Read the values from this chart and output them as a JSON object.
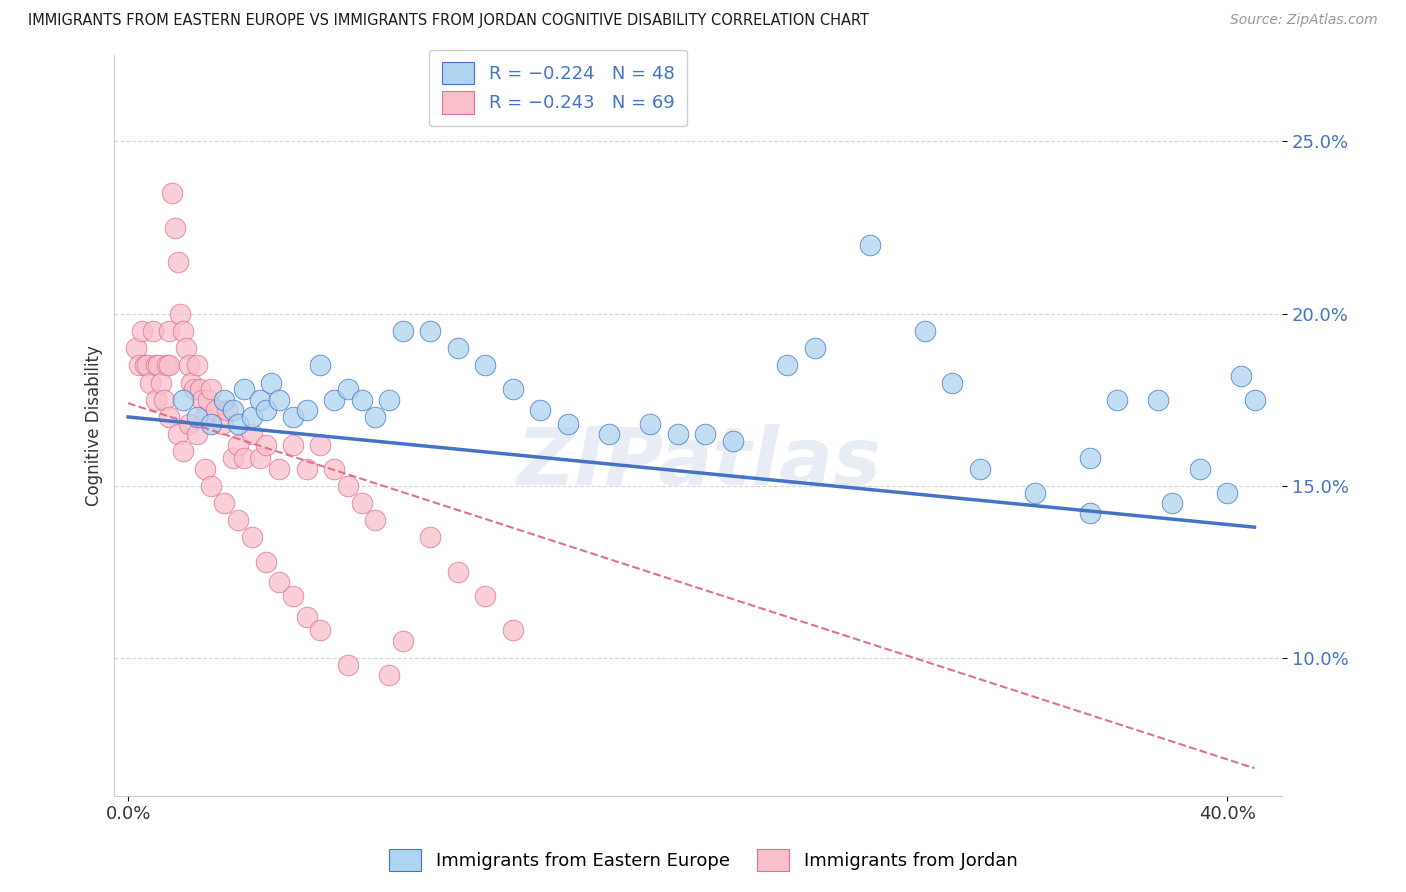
{
  "title": "IMMIGRANTS FROM EASTERN EUROPE VS IMMIGRANTS FROM JORDAN COGNITIVE DISABILITY CORRELATION CHART",
  "source": "Source: ZipAtlas.com",
  "ylabel": "Cognitive Disability",
  "y_ticks": [
    0.1,
    0.15,
    0.2,
    0.25
  ],
  "y_tick_labels": [
    "10.0%",
    "15.0%",
    "20.0%",
    "25.0%"
  ],
  "xlim": [
    -0.005,
    0.42
  ],
  "ylim": [
    0.06,
    0.275
  ],
  "watermark": "ZIPatlas",
  "legend_label1": "Immigrants from Eastern Europe",
  "legend_label2": "Immigrants from Jordan",
  "color_blue": "#aed4f0",
  "color_pink": "#f9c0cb",
  "edge_blue": "#4472c4",
  "edge_pink": "#e07090",
  "line_blue": "#4472c4",
  "line_pink": "#e07090",
  "text_color_blue": "#4472c4",
  "text_color_dark": "#333333",
  "grid_color": "#cccccc",
  "blue_trend_x": [
    0.0,
    0.41
  ],
  "blue_trend_y": [
    0.17,
    0.138
  ],
  "pink_trend_x": [
    0.0,
    0.41
  ],
  "pink_trend_y": [
    0.174,
    0.068
  ],
  "blue_x": [
    0.02,
    0.025,
    0.03,
    0.035,
    0.038,
    0.04,
    0.042,
    0.045,
    0.048,
    0.05,
    0.052,
    0.055,
    0.06,
    0.065,
    0.07,
    0.075,
    0.08,
    0.085,
    0.09,
    0.095,
    0.1,
    0.11,
    0.12,
    0.13,
    0.14,
    0.15,
    0.16,
    0.175,
    0.19,
    0.2,
    0.21,
    0.22,
    0.24,
    0.25,
    0.27,
    0.29,
    0.3,
    0.31,
    0.33,
    0.35,
    0.36,
    0.375,
    0.39,
    0.4,
    0.405,
    0.41,
    0.35,
    0.38
  ],
  "blue_y": [
    0.175,
    0.17,
    0.168,
    0.175,
    0.172,
    0.168,
    0.178,
    0.17,
    0.175,
    0.172,
    0.18,
    0.175,
    0.17,
    0.172,
    0.185,
    0.175,
    0.178,
    0.175,
    0.17,
    0.175,
    0.195,
    0.195,
    0.19,
    0.185,
    0.178,
    0.172,
    0.168,
    0.165,
    0.168,
    0.165,
    0.165,
    0.163,
    0.185,
    0.19,
    0.22,
    0.195,
    0.18,
    0.155,
    0.148,
    0.158,
    0.175,
    0.175,
    0.155,
    0.148,
    0.182,
    0.175,
    0.142,
    0.145
  ],
  "pink_x": [
    0.003,
    0.004,
    0.005,
    0.006,
    0.007,
    0.008,
    0.009,
    0.01,
    0.01,
    0.011,
    0.012,
    0.013,
    0.014,
    0.015,
    0.015,
    0.016,
    0.017,
    0.018,
    0.019,
    0.02,
    0.021,
    0.022,
    0.023,
    0.024,
    0.025,
    0.026,
    0.027,
    0.028,
    0.029,
    0.03,
    0.032,
    0.034,
    0.036,
    0.038,
    0.04,
    0.042,
    0.045,
    0.048,
    0.05,
    0.055,
    0.06,
    0.065,
    0.07,
    0.075,
    0.08,
    0.085,
    0.09,
    0.095,
    0.1,
    0.11,
    0.12,
    0.13,
    0.14,
    0.015,
    0.018,
    0.02,
    0.022,
    0.025,
    0.028,
    0.03,
    0.035,
    0.04,
    0.045,
    0.05,
    0.055,
    0.06,
    0.065,
    0.07,
    0.08
  ],
  "pink_y": [
    0.19,
    0.185,
    0.195,
    0.185,
    0.185,
    0.18,
    0.195,
    0.185,
    0.175,
    0.185,
    0.18,
    0.175,
    0.185,
    0.195,
    0.185,
    0.235,
    0.225,
    0.215,
    0.2,
    0.195,
    0.19,
    0.185,
    0.18,
    0.178,
    0.185,
    0.178,
    0.175,
    0.17,
    0.175,
    0.178,
    0.172,
    0.168,
    0.172,
    0.158,
    0.162,
    0.158,
    0.165,
    0.158,
    0.162,
    0.155,
    0.162,
    0.155,
    0.162,
    0.155,
    0.15,
    0.145,
    0.14,
    0.095,
    0.105,
    0.135,
    0.125,
    0.118,
    0.108,
    0.17,
    0.165,
    0.16,
    0.168,
    0.165,
    0.155,
    0.15,
    0.145,
    0.14,
    0.135,
    0.128,
    0.122,
    0.118,
    0.112,
    0.108,
    0.098
  ]
}
